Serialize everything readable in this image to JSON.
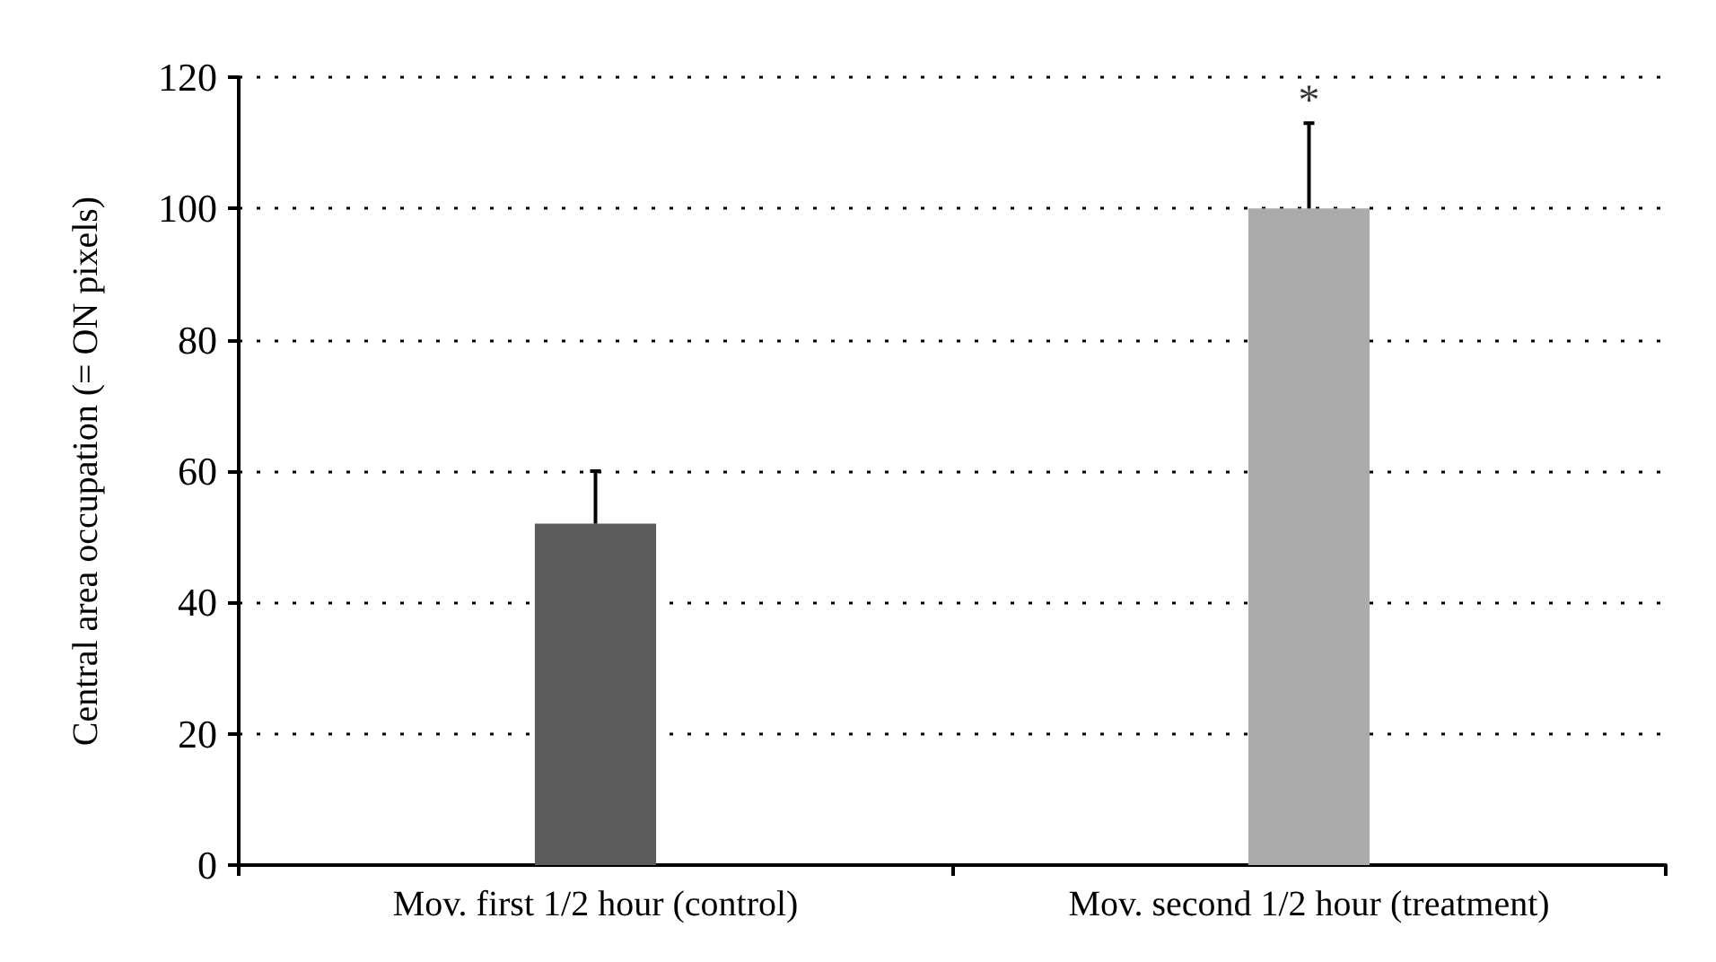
{
  "chart_data": {
    "type": "bar",
    "ylabel": "Central area occupation (= ON pixels)",
    "categories": [
      "Mov. first 1/2 hour (control)",
      "Mov. second 1/2 hour (treatment)"
    ],
    "values": [
      52,
      100
    ],
    "colors": [
      "#5c5c5c",
      "#ababab"
    ],
    "errors": [
      [
        52,
        60
      ],
      [
        100,
        113
      ]
    ],
    "ylim": [
      0,
      120
    ],
    "yticks": [
      0,
      20,
      40,
      60,
      80,
      100,
      120
    ],
    "grid": "y",
    "annotations": [
      {
        "text": "*",
        "x": "Mov. second 1/2 hour (treatment)",
        "y": 113
      }
    ]
  }
}
